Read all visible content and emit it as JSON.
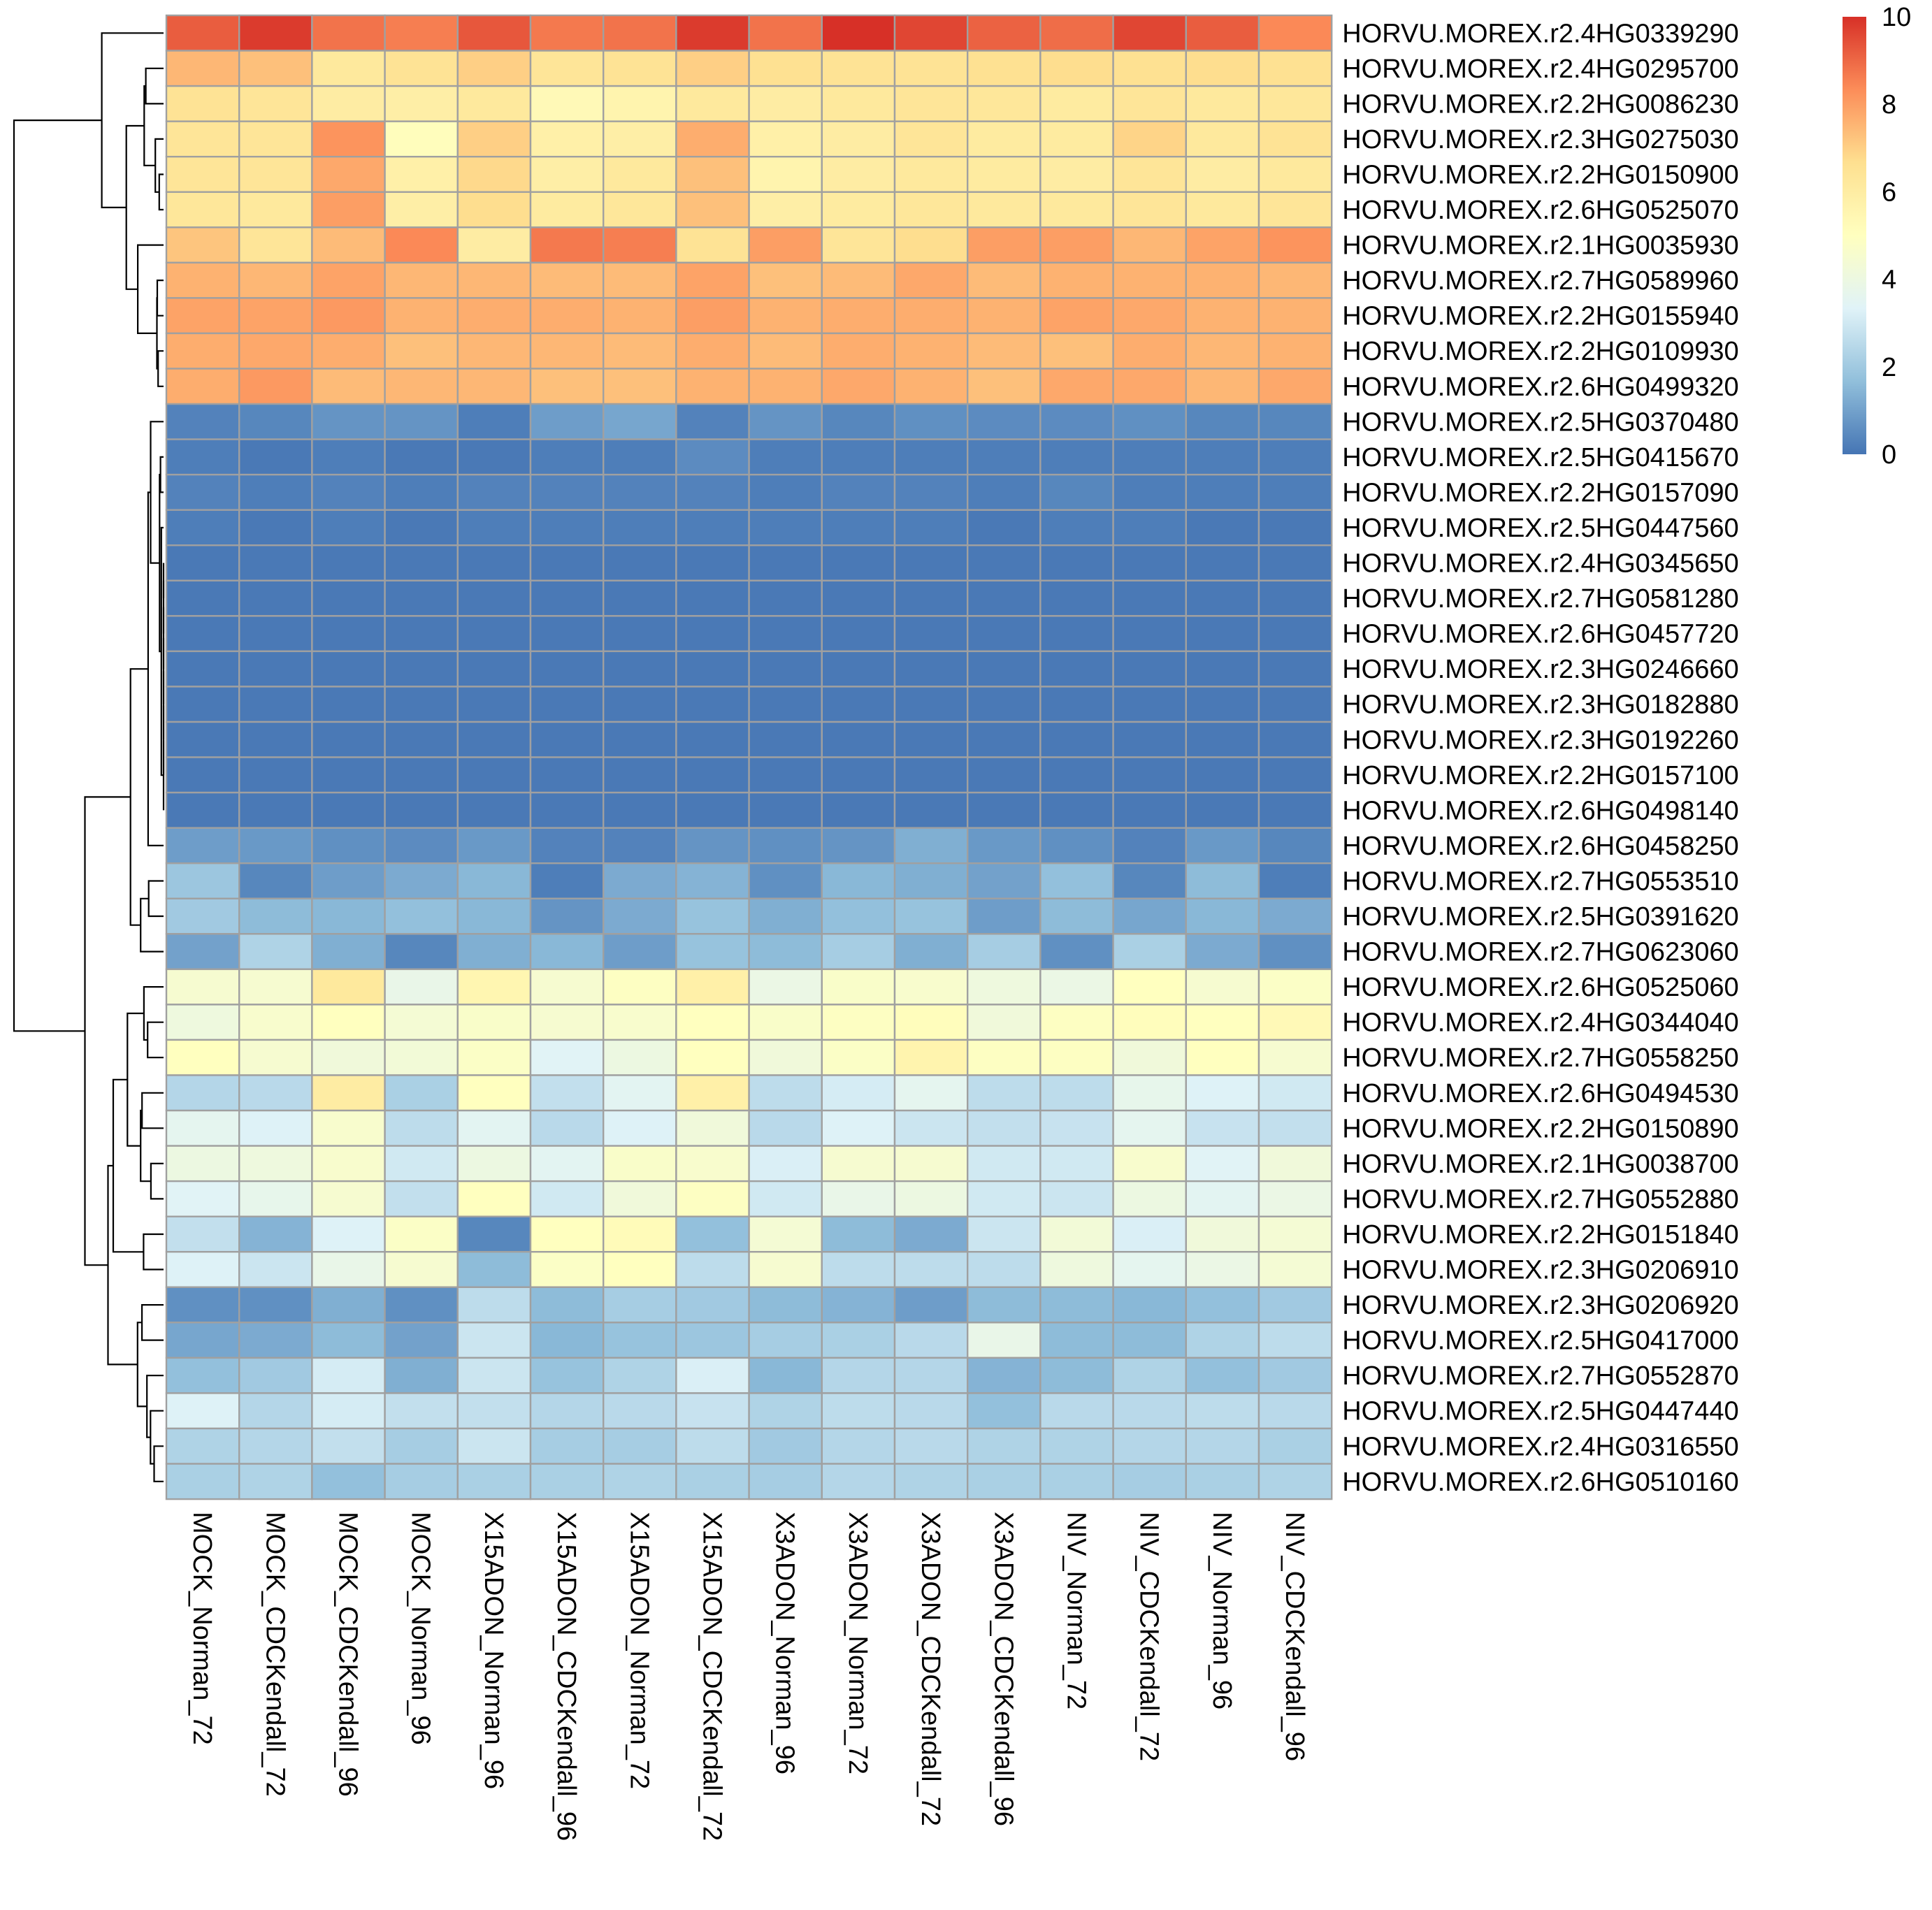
{
  "chart_data": {
    "type": "heatmap",
    "title": "",
    "xlabel": "",
    "ylabel": "",
    "color_scale": {
      "min": 0,
      "max": 10,
      "ticks": [
        "0",
        "2",
        "4",
        "6",
        "8",
        "10"
      ],
      "colors": [
        "#4575B4",
        "#91BFDB",
        "#E0F3F8",
        "#FFFFBF",
        "#FEE090",
        "#FC8D59",
        "#D73027"
      ]
    },
    "grid_color": "#A0A0A0",
    "dendrogram_color": "#000000",
    "columns": [
      "MOCK_Norman_72",
      "MOCK_CDCKendall_72",
      "MOCK_CDCKendall_96",
      "MOCK_Norman_96",
      "X15ADON_Norman_96",
      "X15ADON_CDCKendall_96",
      "X15ADON_Norman_72",
      "X15ADON_CDCKendall_72",
      "X3ADON_Norman_96",
      "X3ADON_Norman_72",
      "X3ADON_CDCKendall_72",
      "X3ADON_CDCKendall_96",
      "NIV_Norman_72",
      "NIV_CDCKendall_72",
      "NIV_Norman_96",
      "NIV_CDCKendall_96"
    ],
    "rows": [
      {
        "gene": "HORVU.MOREX.r2.4HG0339290",
        "values": [
          9.2,
          9.8,
          8.8,
          8.6,
          9.3,
          8.7,
          8.8,
          9.8,
          8.8,
          10.0,
          9.6,
          9.1,
          8.9,
          9.6,
          9.2,
          8.4
        ]
      },
      {
        "gene": "HORVU.MOREX.r2.4HG0295700",
        "values": [
          7.5,
          7.3,
          6.2,
          6.5,
          7.0,
          6.4,
          6.5,
          7.0,
          6.6,
          6.5,
          6.5,
          6.6,
          6.7,
          6.6,
          6.7,
          6.6
        ]
      },
      {
        "gene": "HORVU.MOREX.r2.2HG0086230",
        "values": [
          6.5,
          6.4,
          6.0,
          5.9,
          6.2,
          5.3,
          5.6,
          6.2,
          6.0,
          6.2,
          6.4,
          6.3,
          6.1,
          6.4,
          6.2,
          6.3
        ]
      },
      {
        "gene": "HORVU.MOREX.r2.3HG0275030",
        "values": [
          6.4,
          6.4,
          8.2,
          5.1,
          7.0,
          5.8,
          5.9,
          7.7,
          5.8,
          6.0,
          6.4,
          6.1,
          6.1,
          6.9,
          6.2,
          6.5
        ]
      },
      {
        "gene": "HORVU.MOREX.r2.2HG0150900",
        "values": [
          6.4,
          6.4,
          7.8,
          5.8,
          6.8,
          5.9,
          6.2,
          7.3,
          5.6,
          6.0,
          6.2,
          6.1,
          6.0,
          6.4,
          6.0,
          6.2
        ]
      },
      {
        "gene": "HORVU.MOREX.r2.6HG0525070",
        "values": [
          6.3,
          6.2,
          8.0,
          5.9,
          6.7,
          6.1,
          6.3,
          7.3,
          5.9,
          6.1,
          6.3,
          6.2,
          6.2,
          6.4,
          6.2,
          6.4
        ]
      },
      {
        "gene": "HORVU.MOREX.r2.1HG0035930",
        "values": [
          7.2,
          6.4,
          7.4,
          8.4,
          6.0,
          8.7,
          8.6,
          6.5,
          8.0,
          6.4,
          6.7,
          8.0,
          8.0,
          7.5,
          7.9,
          8.2
        ]
      },
      {
        "gene": "HORVU.MOREX.r2.7HG0589960",
        "values": [
          7.6,
          7.5,
          7.9,
          7.5,
          7.5,
          7.4,
          7.4,
          7.9,
          7.3,
          7.4,
          7.8,
          7.4,
          7.6,
          7.6,
          7.6,
          7.5
        ]
      },
      {
        "gene": "HORVU.MOREX.r2.2HG0155940",
        "values": [
          7.9,
          7.9,
          8.1,
          7.6,
          7.7,
          7.7,
          7.6,
          8.0,
          7.6,
          7.7,
          7.7,
          7.6,
          7.9,
          7.8,
          7.6,
          7.6
        ]
      },
      {
        "gene": "HORVU.MOREX.r2.2HG0109930",
        "values": [
          7.7,
          7.8,
          7.7,
          7.3,
          7.5,
          7.5,
          7.4,
          7.7,
          7.4,
          7.7,
          7.6,
          7.4,
          7.3,
          7.7,
          7.5,
          7.6
        ]
      },
      {
        "gene": "HORVU.MOREX.r2.6HG0499320",
        "values": [
          7.7,
          8.1,
          7.4,
          7.5,
          7.5,
          7.3,
          7.3,
          7.6,
          7.6,
          7.8,
          7.6,
          7.3,
          7.8,
          7.8,
          7.5,
          7.8
        ]
      },
      {
        "gene": "HORVU.MOREX.r2.5HG0370480",
        "values": [
          0.3,
          0.4,
          0.7,
          0.7,
          0.2,
          0.9,
          1.1,
          0.3,
          0.7,
          0.4,
          0.6,
          0.5,
          0.5,
          0.6,
          0.4,
          0.4
        ]
      },
      {
        "gene": "HORVU.MOREX.r2.5HG0415670",
        "values": [
          0.2,
          0.1,
          0.2,
          0.1,
          0.1,
          0.2,
          0.2,
          0.5,
          0.2,
          0.2,
          0.2,
          0.2,
          0.2,
          0.2,
          0.2,
          0.2
        ]
      },
      {
        "gene": "HORVU.MOREX.r2.2HG0157090",
        "values": [
          0.3,
          0.2,
          0.3,
          0.2,
          0.3,
          0.3,
          0.3,
          0.3,
          0.2,
          0.3,
          0.3,
          0.2,
          0.4,
          0.2,
          0.2,
          0.2
        ]
      },
      {
        "gene": "HORVU.MOREX.r2.5HG0447560",
        "values": [
          0.2,
          0.1,
          0.2,
          0.1,
          0.2,
          0.2,
          0.2,
          0.2,
          0.2,
          0.2,
          0.2,
          0.1,
          0.2,
          0.2,
          0.1,
          0.1
        ]
      },
      {
        "gene": "HORVU.MOREX.r2.4HG0345650",
        "values": [
          0.1,
          0.1,
          0.1,
          0.1,
          0.1,
          0.1,
          0.1,
          0.1,
          0.1,
          0.1,
          0.1,
          0.1,
          0.1,
          0.1,
          0.1,
          0.1
        ]
      },
      {
        "gene": "HORVU.MOREX.r2.7HG0581280",
        "values": [
          0.1,
          0.1,
          0.1,
          0.1,
          0.1,
          0.1,
          0.1,
          0.1,
          0.1,
          0.1,
          0.1,
          0.1,
          0.1,
          0.1,
          0.1,
          0.1
        ]
      },
      {
        "gene": "HORVU.MOREX.r2.6HG0457720",
        "values": [
          0.1,
          0.1,
          0.1,
          0.1,
          0.1,
          0.1,
          0.1,
          0.1,
          0.1,
          0.1,
          0.1,
          0.1,
          0.1,
          0.1,
          0.1,
          0.1
        ]
      },
      {
        "gene": "HORVU.MOREX.r2.3HG0246660",
        "values": [
          0.1,
          0.1,
          0.1,
          0.1,
          0.1,
          0.1,
          0.1,
          0.1,
          0.1,
          0.1,
          0.1,
          0.1,
          0.1,
          0.1,
          0.1,
          0.1
        ]
      },
      {
        "gene": "HORVU.MOREX.r2.3HG0182880",
        "values": [
          0.1,
          0.1,
          0.1,
          0.1,
          0.1,
          0.1,
          0.1,
          0.1,
          0.1,
          0.1,
          0.1,
          0.1,
          0.1,
          0.1,
          0.1,
          0.1
        ]
      },
      {
        "gene": "HORVU.MOREX.r2.3HG0192260",
        "values": [
          0.1,
          0.1,
          0.1,
          0.1,
          0.1,
          0.1,
          0.1,
          0.1,
          0.1,
          0.1,
          0.1,
          0.1,
          0.1,
          0.1,
          0.1,
          0.1
        ]
      },
      {
        "gene": "HORVU.MOREX.r2.2HG0157100",
        "values": [
          0.1,
          0.1,
          0.1,
          0.1,
          0.1,
          0.1,
          0.1,
          0.1,
          0.1,
          0.1,
          0.1,
          0.1,
          0.1,
          0.1,
          0.1,
          0.1
        ]
      },
      {
        "gene": "HORVU.MOREX.r2.6HG0498140",
        "values": [
          0.1,
          0.1,
          0.1,
          0.1,
          0.1,
          0.1,
          0.1,
          0.1,
          0.1,
          0.1,
          0.1,
          0.1,
          0.1,
          0.1,
          0.1,
          0.1
        ]
      },
      {
        "gene": "HORVU.MOREX.r2.6HG0458250",
        "values": [
          0.9,
          0.8,
          0.6,
          0.5,
          0.8,
          0.3,
          0.3,
          0.7,
          0.6,
          0.7,
          1.3,
          0.8,
          0.6,
          0.3,
          0.8,
          0.4
        ]
      },
      {
        "gene": "HORVU.MOREX.r2.7HG0553510",
        "values": [
          1.9,
          0.4,
          0.9,
          1.2,
          1.5,
          0.2,
          1.2,
          1.4,
          0.6,
          1.5,
          1.3,
          1.0,
          1.7,
          0.4,
          1.6,
          0.2
        ]
      },
      {
        "gene": "HORVU.MOREX.r2.5HG0391620",
        "values": [
          2.0,
          1.6,
          1.5,
          1.7,
          1.5,
          0.7,
          1.2,
          1.8,
          1.3,
          1.7,
          1.8,
          0.9,
          1.6,
          1.1,
          1.5,
          1.2
        ]
      },
      {
        "gene": "HORVU.MOREX.r2.7HG0623060",
        "values": [
          1.0,
          2.3,
          1.3,
          0.4,
          1.3,
          1.5,
          0.9,
          1.8,
          1.6,
          2.1,
          1.3,
          2.1,
          0.6,
          2.2,
          1.2,
          0.6
        ]
      },
      {
        "gene": "HORVU.MOREX.r2.6HG0525060",
        "values": [
          4.5,
          4.5,
          6.2,
          3.8,
          5.5,
          4.5,
          4.9,
          5.8,
          3.9,
          4.7,
          4.6,
          4.1,
          3.9,
          5.0,
          4.5,
          4.8
        ]
      },
      {
        "gene": "HORVU.MOREX.r2.4HG0344040",
        "values": [
          4.1,
          4.6,
          5.0,
          4.4,
          4.7,
          4.5,
          4.6,
          5.0,
          4.7,
          4.9,
          5.1,
          4.2,
          4.9,
          5.1,
          5.0,
          5.3
        ]
      },
      {
        "gene": "HORVU.MOREX.r2.7HG0558250",
        "values": [
          5.0,
          4.5,
          4.2,
          4.3,
          4.8,
          3.4,
          4.0,
          5.0,
          4.2,
          4.8,
          5.6,
          4.9,
          4.9,
          4.2,
          5.0,
          4.5
        ]
      },
      {
        "gene": "HORVU.MOREX.r2.6HG0494530",
        "values": [
          2.4,
          2.5,
          6.0,
          2.2,
          5.0,
          2.7,
          3.5,
          5.8,
          2.6,
          3.1,
          3.6,
          2.6,
          2.6,
          3.7,
          3.3,
          3.0
        ]
      },
      {
        "gene": "HORVU.MOREX.r2.2HG0150890",
        "values": [
          3.6,
          3.3,
          4.6,
          2.6,
          3.5,
          2.5,
          3.3,
          4.2,
          2.5,
          3.3,
          2.9,
          2.7,
          2.8,
          3.6,
          2.8,
          2.7
        ]
      },
      {
        "gene": "HORVU.MOREX.r2.1HG0038700",
        "values": [
          4.0,
          4.1,
          4.6,
          3.0,
          4.0,
          3.5,
          4.7,
          4.6,
          3.2,
          4.5,
          4.5,
          3.0,
          3.0,
          4.6,
          3.4,
          4.2
        ]
      },
      {
        "gene": "HORVU.MOREX.r2.7HG0552880",
        "values": [
          3.4,
          3.7,
          4.5,
          2.7,
          5.0,
          3.0,
          4.2,
          4.9,
          3.0,
          3.8,
          4.0,
          3.0,
          2.9,
          4.0,
          3.5,
          3.9
        ]
      },
      {
        "gene": "HORVU.MOREX.r2.2HG0151840",
        "values": [
          2.7,
          1.4,
          3.3,
          4.8,
          0.4,
          5.0,
          5.2,
          1.7,
          4.4,
          1.6,
          1.2,
          2.9,
          4.3,
          3.2,
          4.2,
          4.4
        ]
      },
      {
        "gene": "HORVU.MOREX.r2.3HG0206910",
        "values": [
          3.3,
          2.9,
          3.8,
          4.5,
          1.6,
          4.8,
          5.0,
          2.6,
          4.5,
          2.6,
          2.6,
          2.6,
          4.1,
          3.6,
          3.9,
          4.4
        ]
      },
      {
        "gene": "HORVU.MOREX.r2.3HG0206920",
        "values": [
          0.6,
          0.6,
          1.3,
          0.6,
          2.6,
          1.6,
          2.1,
          2.0,
          1.6,
          1.4,
          0.9,
          1.6,
          1.6,
          1.5,
          1.7,
          2.0
        ]
      },
      {
        "gene": "HORVU.MOREX.r2.5HG0417000",
        "values": [
          1.1,
          1.2,
          1.6,
          1.0,
          2.9,
          1.5,
          1.8,
          1.9,
          2.1,
          2.2,
          2.5,
          3.8,
          1.6,
          1.6,
          2.3,
          2.6
        ]
      },
      {
        "gene": "HORVU.MOREX.r2.7HG0552870",
        "values": [
          1.7,
          2.0,
          3.1,
          1.3,
          2.9,
          1.8,
          2.3,
          3.2,
          1.5,
          2.4,
          2.4,
          1.4,
          1.6,
          2.3,
          1.7,
          2.0
        ]
      },
      {
        "gene": "HORVU.MOREX.r2.5HG0447440",
        "values": [
          3.3,
          2.4,
          3.1,
          2.7,
          2.7,
          2.4,
          2.5,
          2.8,
          2.3,
          2.6,
          2.5,
          1.7,
          2.5,
          2.5,
          2.6,
          2.5
        ]
      },
      {
        "gene": "HORVU.MOREX.r2.4HG0316550",
        "values": [
          2.3,
          2.4,
          2.7,
          2.1,
          2.9,
          2.1,
          2.1,
          2.6,
          2.0,
          2.4,
          2.5,
          2.3,
          2.3,
          2.4,
          2.4,
          2.2
        ]
      },
      {
        "gene": "HORVU.MOREX.r2.6HG0510160",
        "values": [
          2.2,
          2.3,
          1.7,
          2.1,
          2.2,
          2.2,
          2.3,
          2.2,
          2.1,
          2.4,
          2.3,
          2.2,
          2.2,
          2.1,
          2.2,
          2.3
        ]
      }
    ],
    "row_dendrogram_order": [
      0,
      1,
      2,
      3,
      4,
      5,
      6,
      7,
      8,
      9,
      10,
      11,
      12,
      13,
      14,
      15,
      16,
      17,
      18,
      19,
      20,
      21,
      22,
      23,
      24,
      25,
      26,
      27,
      28,
      29,
      30,
      31,
      32,
      33,
      34,
      35,
      36,
      37,
      38,
      39,
      40,
      41
    ]
  }
}
